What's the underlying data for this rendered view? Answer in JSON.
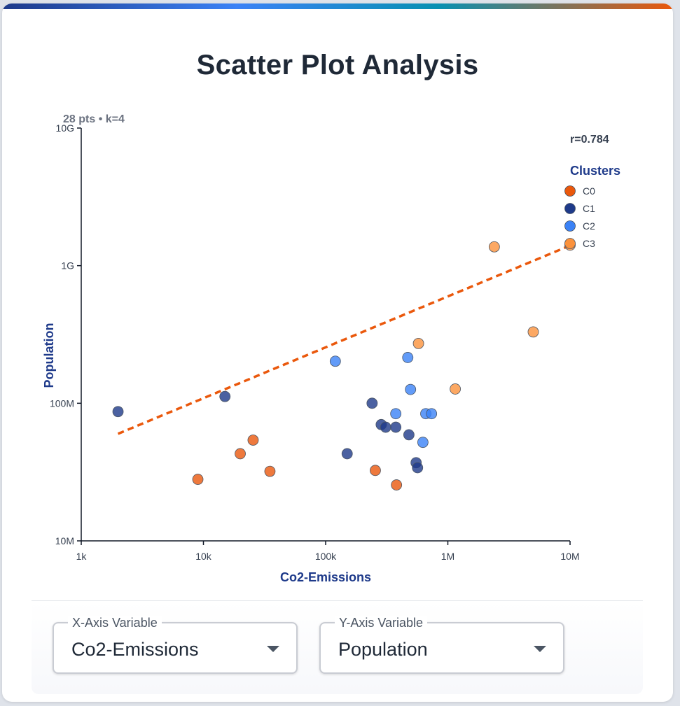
{
  "title": "Scatter Plot Analysis",
  "controls": {
    "x_axis": {
      "label": "X-Axis Variable",
      "value": "Co2-Emissions"
    },
    "y_axis": {
      "label": "Y-Axis Variable",
      "value": "Population"
    }
  },
  "chart_data": {
    "type": "scatter",
    "info": "28 pts • k=4",
    "correlation_label": "r=0.784",
    "xlabel": "Co2-Emissions",
    "ylabel": "Population",
    "x_scale": "log",
    "y_scale": "log",
    "xlim": [
      1000,
      10000000
    ],
    "ylim": [
      10000000,
      10000000000
    ],
    "x_ticks": [
      {
        "value": 1000,
        "label": "1k"
      },
      {
        "value": 10000,
        "label": "10k"
      },
      {
        "value": 100000,
        "label": "100k"
      },
      {
        "value": 1000000,
        "label": "1M"
      },
      {
        "value": 10000000,
        "label": "10M"
      }
    ],
    "y_ticks": [
      {
        "value": 10000000,
        "label": "10M"
      },
      {
        "value": 100000000,
        "label": "100M"
      },
      {
        "value": 1000000000,
        "label": "1G"
      },
      {
        "value": 10000000000,
        "label": "10G"
      }
    ],
    "legend": {
      "title": "Clusters",
      "position": "top-right"
    },
    "grid": false,
    "trendline": {
      "color": "#ea580c",
      "style": "dashed",
      "start": {
        "x": 2000,
        "y": 60000000
      },
      "end": {
        "x": 10000000,
        "y": 1400000000
      }
    },
    "clusters": [
      {
        "name": "C0",
        "color": "#ea580c",
        "points": [
          {
            "x": 9000,
            "y": 28000000
          },
          {
            "x": 20000,
            "y": 43000000
          },
          {
            "x": 25500,
            "y": 54000000
          },
          {
            "x": 35000,
            "y": 32000000
          },
          {
            "x": 255000,
            "y": 32500000
          },
          {
            "x": 380000,
            "y": 25500000
          }
        ]
      },
      {
        "name": "C1",
        "color": "#1e3a8a",
        "points": [
          {
            "x": 2000,
            "y": 87000000
          },
          {
            "x": 15000,
            "y": 112000000
          },
          {
            "x": 150000,
            "y": 43000000
          },
          {
            "x": 240000,
            "y": 100000000
          },
          {
            "x": 285000,
            "y": 70000000
          },
          {
            "x": 310000,
            "y": 67000000
          },
          {
            "x": 375000,
            "y": 67000000
          },
          {
            "x": 480000,
            "y": 59000000
          },
          {
            "x": 550000,
            "y": 37000000
          },
          {
            "x": 565000,
            "y": 34000000
          }
        ]
      },
      {
        "name": "C2",
        "color": "#3b82f6",
        "points": [
          {
            "x": 120000,
            "y": 202000000
          },
          {
            "x": 375000,
            "y": 84000000
          },
          {
            "x": 470000,
            "y": 215000000
          },
          {
            "x": 495000,
            "y": 126000000
          },
          {
            "x": 625000,
            "y": 52000000
          },
          {
            "x": 660000,
            "y": 84000000
          },
          {
            "x": 735000,
            "y": 84000000
          }
        ]
      },
      {
        "name": "C3",
        "color": "#fb923c",
        "points": [
          {
            "x": 575000,
            "y": 272000000
          },
          {
            "x": 1150000,
            "y": 127000000
          },
          {
            "x": 2400000,
            "y": 1370000000
          },
          {
            "x": 5000000,
            "y": 330000000
          },
          {
            "x": 10000000,
            "y": 1410000000
          }
        ]
      }
    ]
  }
}
